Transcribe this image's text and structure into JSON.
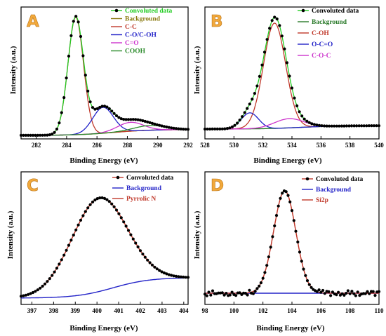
{
  "chart_data": [
    {
      "panel": "A",
      "type": "line",
      "xlabel": "Binding Energy (eV)",
      "ylabel": "Intensity (a.u.)",
      "xlim": [
        281,
        292
      ],
      "xticks": [
        "282",
        "284",
        "286",
        "288",
        "290",
        "292"
      ],
      "grid": false,
      "legend_position": "top-right",
      "peaks": [
        {
          "name": "C-C",
          "center": 284.6,
          "height": 1.0,
          "fwhm": 1.2
        },
        {
          "name": "C-O/C-OH",
          "center": 286.4,
          "height": 0.22,
          "fwhm": 1.6
        },
        {
          "name": "C=O",
          "center": 288.2,
          "height": 0.075,
          "fwhm": 2.0
        },
        {
          "name": "COOH",
          "center": 289.5,
          "height": 0.04,
          "fwhm": 2.4
        }
      ],
      "background": {
        "start": 0.0,
        "end": 0.05
      },
      "series": [
        {
          "name": "Convoluted data",
          "color": "#000000",
          "marker": "dot",
          "line_color": "#22cc22"
        },
        {
          "name": "Background",
          "color": "#8a7a10"
        },
        {
          "name": "C-C",
          "color": "#c0392b"
        },
        {
          "name": "C-O/C-OH",
          "color": "#2323c8"
        },
        {
          "name": "C=O",
          "color": "#cc33cc"
        },
        {
          "name": "COOH",
          "color": "#2a8a2a"
        }
      ]
    },
    {
      "panel": "B",
      "type": "line",
      "xlabel": "Binding Energy (eV)",
      "ylabel": "Intensity (a.u.)",
      "xlim": [
        528,
        540
      ],
      "xticks": [
        "528",
        "530",
        "532",
        "534",
        "536",
        "538",
        "540"
      ],
      "grid": false,
      "legend_position": "top-right",
      "peaks": [
        {
          "name": "C-OH",
          "center": 532.8,
          "height": 0.92,
          "fwhm": 1.8
        },
        {
          "name": "O-C=O",
          "center": 531.1,
          "height": 0.14,
          "fwhm": 1.4
        },
        {
          "name": "C-O-C",
          "center": 533.8,
          "height": 0.08,
          "fwhm": 2.4
        }
      ],
      "background": {
        "start": 0.0,
        "end": 0.03
      },
      "series": [
        {
          "name": "Convoluted data",
          "color": "#000000",
          "marker": "dot",
          "line_color": "#22cc22"
        },
        {
          "name": "Background",
          "color": "#2a7a2a"
        },
        {
          "name": "C-OH",
          "color": "#c0392b"
        },
        {
          "name": "O-C=O",
          "color": "#2323c8"
        },
        {
          "name": "C-O-C",
          "color": "#cc33cc"
        }
      ]
    },
    {
      "panel": "C",
      "type": "line",
      "xlabel": "Binding Energy (eV)",
      "ylabel": "Intensity (a.u.)",
      "xlim": [
        396.5,
        404.2
      ],
      "xticks": [
        "397",
        "398",
        "399",
        "400",
        "401",
        "402",
        "403",
        "404"
      ],
      "grid": false,
      "legend_position": "top-right",
      "peaks": [
        {
          "name": "Pyrrolic N",
          "center": 400.1,
          "height": 1.0,
          "fwhm": 3.0
        }
      ],
      "background": {
        "start": 0.0,
        "end": 0.22
      },
      "series": [
        {
          "name": "Convoluted data",
          "color": "#000000",
          "marker": "dot",
          "line_color": "#c0392b"
        },
        {
          "name": "Background",
          "color": "#2323c8"
        },
        {
          "name": "Pyrrolic N",
          "color": "#c0392b"
        }
      ]
    },
    {
      "panel": "D",
      "type": "line",
      "xlabel": "Binding Energy (eV)",
      "ylabel": "Intensity (a.u.)",
      "xlim": [
        98,
        110
      ],
      "xticks": [
        "98",
        "100",
        "102",
        "104",
        "106",
        "108",
        "110"
      ],
      "grid": false,
      "legend_position": "top-right",
      "peaks": [
        {
          "name": "Si2p",
          "center": 103.5,
          "height": 1.0,
          "fwhm": 1.8
        }
      ],
      "background": {
        "start": 0.0,
        "end": 0.0
      },
      "series": [
        {
          "name": "Convoluted data",
          "color": "#000000",
          "marker": "dot",
          "line_color": "#c0392b"
        },
        {
          "name": "Background",
          "color": "#2323c8"
        },
        {
          "name": "Si2p",
          "color": "#c0392b"
        }
      ]
    }
  ]
}
